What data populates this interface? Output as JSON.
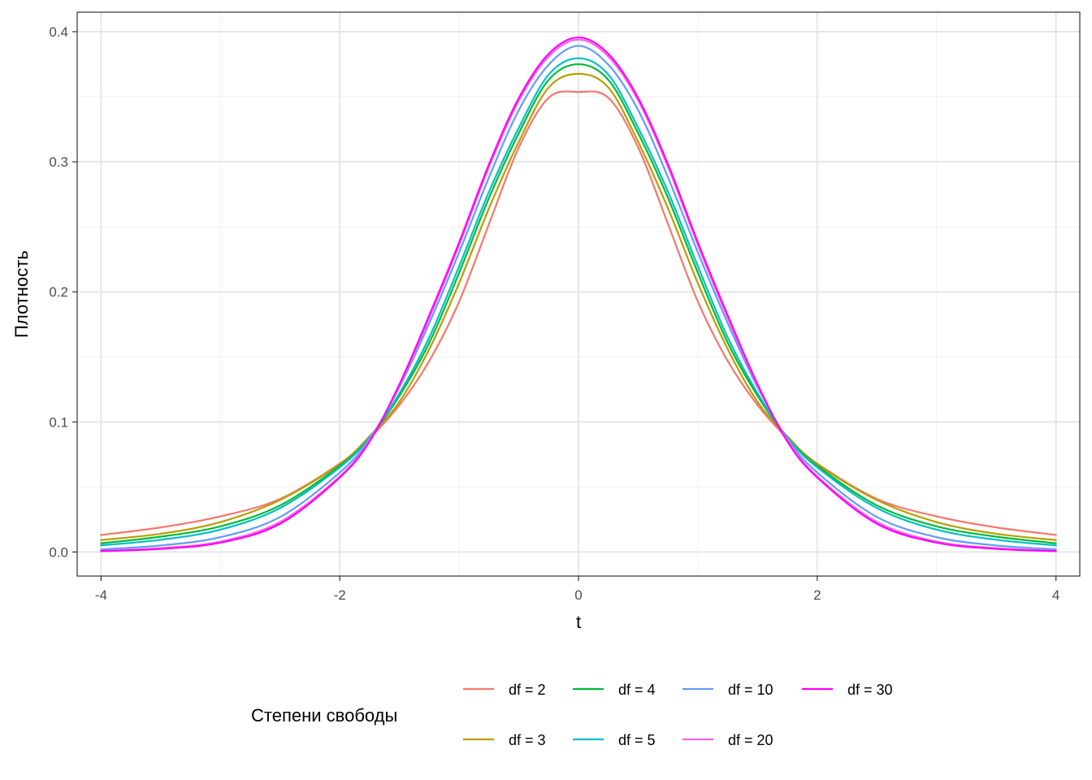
{
  "chart_data": {
    "type": "line",
    "title": "",
    "xlabel": "t",
    "ylabel": "Плотность",
    "xlim": [
      -4.2,
      4.2
    ],
    "ylim": [
      -0.0185,
      0.415
    ],
    "x_ticks": [
      -4,
      -2,
      0,
      2,
      4
    ],
    "x_tick_labels": [
      "-4",
      "-2",
      "0",
      "2",
      "4"
    ],
    "x_minor": [
      -3,
      -1,
      1,
      3
    ],
    "y_ticks": [
      0.0,
      0.1,
      0.2,
      0.3,
      0.4
    ],
    "y_tick_labels": [
      "0.0",
      "0.1",
      "0.2",
      "0.3",
      "0.4"
    ],
    "y_minor": [
      0.05,
      0.15,
      0.25,
      0.35
    ],
    "grid": true,
    "legend_title": "Степени свободы",
    "legend_position": "bottom",
    "x": [
      -4,
      -3.5,
      -3,
      -2.5,
      -2,
      -1.75,
      -1.5,
      -1.25,
      -1,
      -0.75,
      -0.5,
      -0.25,
      0,
      0.25,
      0.5,
      0.75,
      1,
      1.25,
      1.5,
      1.75,
      2,
      2.5,
      3,
      3.5,
      4
    ],
    "series": [
      {
        "name": "df = 2",
        "color": "#F8766D",
        "values": [
          0.0131,
          0.0189,
          0.0274,
          0.0408,
          0.068,
          0.0875,
          0.113,
          0.1469,
          0.1925,
          0.2521,
          0.311,
          0.3492,
          0.3536,
          0.3492,
          0.311,
          0.2521,
          0.1925,
          0.1469,
          0.113,
          0.0875,
          0.068,
          0.0408,
          0.0274,
          0.0189,
          0.0131
        ]
      },
      {
        "name": "df = 3",
        "color": "#B79F00",
        "values": [
          0.0092,
          0.014,
          0.023,
          0.04,
          0.0675,
          0.089,
          0.1155,
          0.156,
          0.2067,
          0.2641,
          0.3153,
          0.3571,
          0.3676,
          0.3571,
          0.3153,
          0.2641,
          0.2067,
          0.156,
          0.1155,
          0.089,
          0.0675,
          0.04,
          0.023,
          0.014,
          0.0092
        ]
      },
      {
        "name": "df = 4",
        "color": "#00BA38",
        "values": [
          0.0067,
          0.0118,
          0.0197,
          0.0358,
          0.0663,
          0.088,
          0.1201,
          0.1609,
          0.2147,
          0.2722,
          0.322,
          0.363,
          0.375,
          0.363,
          0.322,
          0.2722,
          0.2147,
          0.1609,
          0.1201,
          0.088,
          0.0663,
          0.0358,
          0.0197,
          0.0118,
          0.0067
        ]
      },
      {
        "name": "df = 5",
        "color": "#00BFC4",
        "values": [
          0.0051,
          0.0094,
          0.0172,
          0.0338,
          0.0651,
          0.088,
          0.122,
          0.165,
          0.2197,
          0.2769,
          0.3261,
          0.367,
          0.3796,
          0.367,
          0.3261,
          0.2769,
          0.2197,
          0.165,
          0.122,
          0.088,
          0.0651,
          0.0338,
          0.0172,
          0.0094,
          0.0051
        ]
      },
      {
        "name": "df = 10",
        "color": "#619CFF",
        "values": [
          0.002,
          0.005,
          0.0114,
          0.0269,
          0.0611,
          0.087,
          0.1267,
          0.176,
          0.2304,
          0.288,
          0.3397,
          0.3746,
          0.3891,
          0.3746,
          0.3397,
          0.288,
          0.2304,
          0.176,
          0.1267,
          0.087,
          0.0611,
          0.0269,
          0.0114,
          0.005,
          0.002
        ]
      },
      {
        "name": "df = 20",
        "color": "#F564E3",
        "values": [
          0.0009,
          0.003,
          0.008,
          0.0231,
          0.0581,
          0.086,
          0.128,
          0.18,
          0.236,
          0.296,
          0.347,
          0.381,
          0.394,
          0.381,
          0.347,
          0.296,
          0.236,
          0.18,
          0.128,
          0.086,
          0.0581,
          0.0231,
          0.008,
          0.003,
          0.0009
        ]
      },
      {
        "name": "df = 30",
        "color": "#FF00FF",
        "values": [
          0.0007,
          0.0024,
          0.0072,
          0.0217,
          0.0573,
          0.085,
          0.129,
          0.182,
          0.238,
          0.298,
          0.349,
          0.383,
          0.3956,
          0.383,
          0.349,
          0.298,
          0.238,
          0.182,
          0.129,
          0.085,
          0.0573,
          0.0217,
          0.0072,
          0.0024,
          0.0007
        ]
      }
    ]
  }
}
